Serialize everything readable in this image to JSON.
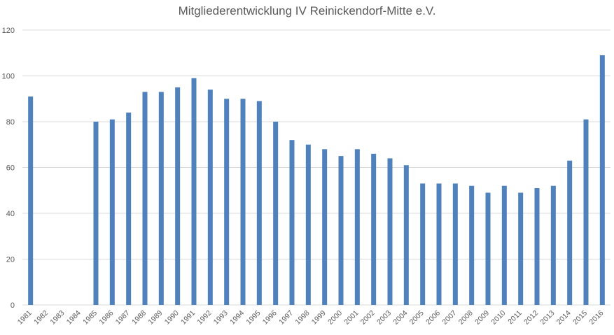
{
  "chart_data": {
    "type": "bar",
    "title": "Mitgliederentwicklung IV Reinickendorf-Mitte e.V.",
    "xlabel": "",
    "ylabel": "",
    "ylim": [
      0,
      120
    ],
    "yticks": [
      0,
      20,
      40,
      60,
      80,
      100,
      120
    ],
    "grid": true,
    "bar_color": "#4F81BD",
    "grid_color": "#D9D9D9",
    "categories": [
      "1981",
      "1982",
      "1983",
      "1984",
      "1985",
      "1986",
      "1987",
      "1988",
      "1989",
      "1990",
      "1991",
      "1992",
      "1993",
      "1994",
      "1995",
      "1996",
      "1997",
      "1998",
      "1999",
      "2000",
      "2001",
      "2002",
      "2003",
      "2004",
      "2005",
      "2006",
      "2007",
      "2008",
      "2009",
      "2010",
      "2011",
      "2012",
      "2013",
      "2014",
      "2015",
      "2016"
    ],
    "values": [
      91,
      null,
      null,
      null,
      80,
      81,
      84,
      93,
      93,
      95,
      99,
      94,
      90,
      90,
      89,
      80,
      72,
      70,
      68,
      65,
      68,
      66,
      64,
      61,
      53,
      53,
      53,
      52,
      49,
      52,
      49,
      51,
      52,
      63,
      81,
      109
    ]
  }
}
